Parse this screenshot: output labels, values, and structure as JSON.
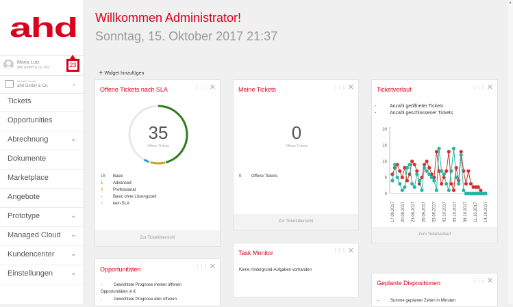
{
  "brand": {
    "logo_text": "ahd",
    "color": "#d9001b"
  },
  "user": {
    "name": "Maria Lutz",
    "sub": "ahd GmbH & Co. KG",
    "badge": "23"
  },
  "client": {
    "label": "Aktueller Kunde",
    "name": "ahd GmbH & Co."
  },
  "nav": [
    {
      "label": "Tickets",
      "chevron": false
    },
    {
      "label": "Opportunities",
      "chevron": false
    },
    {
      "label": "Abrechnung",
      "chevron": true
    },
    {
      "label": "Dokumente",
      "chevron": false
    },
    {
      "label": "Marketplace",
      "chevron": false
    },
    {
      "label": "Angebote",
      "chevron": false
    },
    {
      "label": "Prototype",
      "chevron": true
    },
    {
      "label": "Managed Cloud",
      "chevron": true
    },
    {
      "label": "Kundencenter",
      "chevron": true
    },
    {
      "label": "Einstellungen",
      "chevron": true
    }
  ],
  "header": {
    "title": "Willkommen Administrator!",
    "date": "Sonntag, 15. Oktober 2017 21:37"
  },
  "add_widget": "Widget hinzufügen",
  "widgets": {
    "sla": {
      "title": "Offene Tickets nach SLA",
      "count": "35",
      "sub": "Offene Tickets",
      "rows": [
        {
          "count": "16",
          "label": "Basic",
          "color": "#2e7d1f"
        },
        {
          "count": "1",
          "label": "Advanced",
          "color": "#1aa3c9"
        },
        {
          "count": "3",
          "label": "Professional",
          "color": "#c9a21a"
        },
        {
          "count": "-",
          "label": "Basic ohne Lösungszeit",
          "color": "#333"
        },
        {
          "count": "0",
          "label": "kein SLA",
          "color": "#bbb"
        }
      ],
      "footer": "Zur Ticketübersicht"
    },
    "my": {
      "title": "Meine Tickets",
      "count": "0",
      "sub": "Offene Tickets",
      "row_count": "0",
      "row_label": "Offene Tickets",
      "footer": "Zur Ticketübersicht"
    },
    "verlauf": {
      "title": "Ticketverlauf",
      "footer": "Zum Ticketverlauf"
    },
    "task": {
      "title": "Task Monitor",
      "text": "Keine Hintergrund-Aufgaben vorhanden"
    },
    "opp": {
      "title": "Opportunitäten",
      "line1_bullet": "-",
      "line1": "Gewichtete Prognose meiner offenen",
      "line1b": "Opportunitäten in €",
      "line2_bullet": "-",
      "line2": "Gewichtete Prognose aller offenen"
    },
    "dispo": {
      "title": "Geplante Dispositionen",
      "line_bullet": "-",
      "line": "Summe geplanter Zeiten in Minuten"
    }
  },
  "chart_data": {
    "type": "line",
    "legend": [
      "Anzahl geöffneter Tickets",
      "Anzahl geschlossener Tickets"
    ],
    "colors": [
      "#d32f2f",
      "#26b5a3"
    ],
    "y_ticks": [
      "20",
      "15",
      "10",
      "5",
      "0"
    ],
    "ylim": [
      0,
      20
    ],
    "x_ticks": [
      "17.09.2017",
      "20.09.2017",
      "23.09.2017",
      "26.09.2017",
      "29.09.2017",
      "02.10.2017",
      "05.10.2017",
      "08.10.2017",
      "11.10.2017",
      "14.10.2017"
    ],
    "series": [
      {
        "values": [
          6,
          8,
          9,
          7,
          5,
          8,
          4,
          6,
          10,
          9,
          7,
          3,
          5,
          9,
          10,
          8,
          6,
          5,
          13,
          7,
          3,
          5,
          7,
          13,
          3,
          1,
          8,
          4,
          13,
          7,
          3,
          7,
          3,
          2,
          2,
          2,
          1,
          0,
          0
        ]
      },
      {
        "values": [
          4,
          9,
          5,
          3,
          1,
          2,
          8,
          9,
          3,
          2,
          6,
          4,
          1,
          8,
          7,
          6,
          5,
          4,
          1,
          14,
          7,
          6,
          3,
          1,
          7,
          14,
          5,
          3,
          12,
          1,
          0,
          0,
          0,
          0,
          0,
          0,
          0,
          0,
          0
        ]
      }
    ]
  }
}
